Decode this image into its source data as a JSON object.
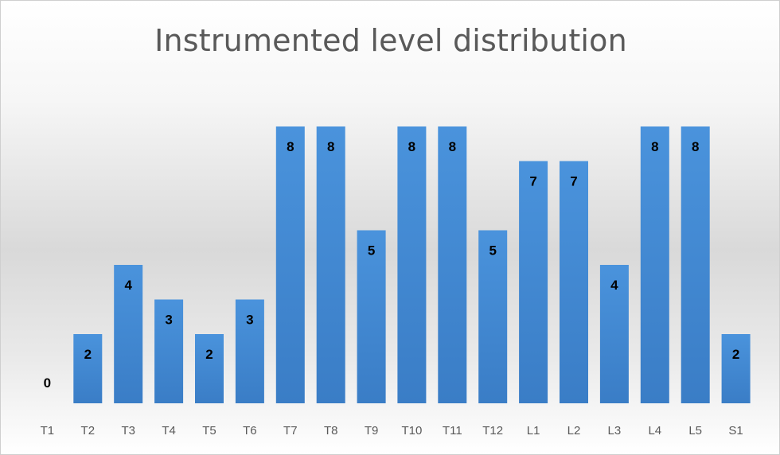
{
  "chart_data": {
    "type": "bar",
    "title": "Instrumented level distribution",
    "xlabel": "",
    "ylabel": "",
    "categories": [
      "T1",
      "T2",
      "T3",
      "T4",
      "T5",
      "T6",
      "T7",
      "T8",
      "T9",
      "T10",
      "T11",
      "T12",
      "L1",
      "L2",
      "L3",
      "L4",
      "L5",
      "S1"
    ],
    "values": [
      0,
      2,
      4,
      3,
      2,
      3,
      8,
      8,
      5,
      8,
      8,
      5,
      7,
      7,
      4,
      8,
      8,
      2
    ],
    "ylim": [
      0,
      8
    ],
    "grid": false,
    "legend": "none",
    "data_labels": true,
    "bar_color": "#3f86d1"
  }
}
